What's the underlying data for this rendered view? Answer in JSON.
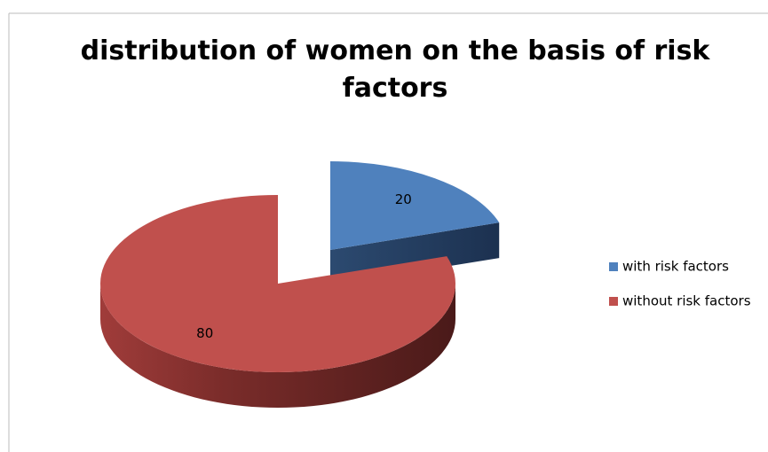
{
  "chart_data": {
    "type": "pie",
    "title": "distribution of women on the basis of risk factors",
    "categories": [
      "with risk factors",
      "without risk factors"
    ],
    "values": [
      20,
      80
    ],
    "colors": [
      "#4f81bd",
      "#c0504d"
    ],
    "legend": "right"
  }
}
